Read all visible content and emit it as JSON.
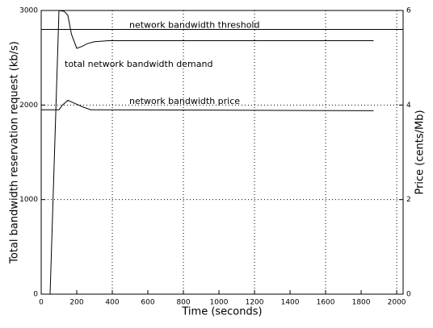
{
  "chart_data": {
    "type": "line",
    "xlabel": "Time (seconds)",
    "ylabel": "Total bandwidth reservation request (kb/s)",
    "y2label": "Price (cents/Mb)",
    "xlim": [
      0,
      2036
    ],
    "xticks": [
      0,
      200,
      400,
      600,
      800,
      1000,
      1200,
      1400,
      1600,
      1800,
      2000
    ],
    "ylim": [
      0,
      3000
    ],
    "yticks": [
      0,
      1000,
      2000,
      3000
    ],
    "y2lim": [
      0,
      6
    ],
    "y2ticks": [
      0,
      2,
      4,
      6
    ],
    "threshold": {
      "label": "network bandwidth threshold",
      "value": 2800
    },
    "grid": true,
    "series": [
      {
        "name": "total network bandwidth demand",
        "color": "#000000",
        "x": [
          50,
          100,
          130,
          150,
          170,
          200,
          230,
          260,
          300,
          380,
          1870
        ],
        "values": [
          0,
          3000,
          2990,
          2950,
          2750,
          2600,
          2620,
          2650,
          2670,
          2680,
          2680
        ]
      },
      {
        "name": "network bandwidth price",
        "color": "#000000",
        "axis": "y2",
        "x": [
          0,
          100,
          120,
          150,
          180,
          210,
          240,
          280,
          1870
        ],
        "values": [
          3.9,
          3.9,
          4.0,
          4.1,
          4.05,
          4.0,
          3.95,
          3.9,
          3.88
        ]
      }
    ]
  }
}
